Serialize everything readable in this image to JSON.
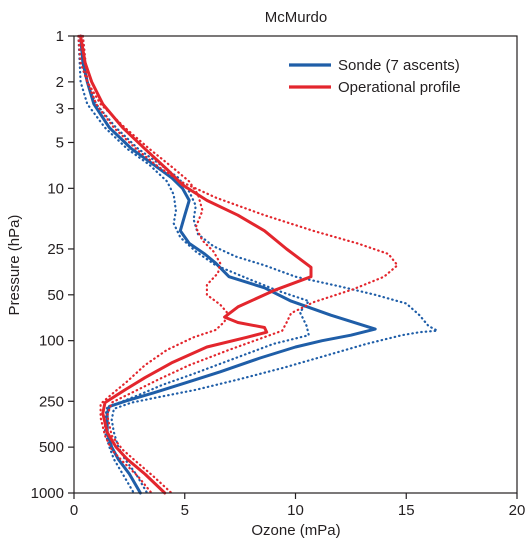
{
  "chart_data": {
    "type": "line",
    "title": "McMurdo",
    "xlabel": "Ozone (mPa)",
    "ylabel": "Pressure (hPa)",
    "xlim": [
      0,
      20
    ],
    "ylim": [
      1000,
      1
    ],
    "y_scale": "log",
    "x_ticks": [
      0,
      5,
      10,
      15,
      20
    ],
    "y_ticks": [
      1,
      2,
      3,
      5,
      10,
      25,
      50,
      100,
      250,
      500,
      1000
    ],
    "legend_position": "top-right",
    "colors": {
      "sonde": "#1f5ea8",
      "operational": "#e3262d",
      "axis": "#231f20"
    },
    "series": [
      {
        "name": "Sonde (7 ascents)",
        "style": "solid",
        "color": "#1f5ea8",
        "points": [
          [
            0.3,
            1
          ],
          [
            0.4,
            1.5
          ],
          [
            0.6,
            2
          ],
          [
            0.9,
            2.8
          ],
          [
            1.6,
            4
          ],
          [
            2.6,
            5.5
          ],
          [
            3.6,
            7
          ],
          [
            4.4,
            8.5
          ],
          [
            4.9,
            10
          ],
          [
            5.2,
            12
          ],
          [
            5.0,
            15
          ],
          [
            4.8,
            19
          ],
          [
            5.2,
            23
          ],
          [
            5.9,
            27
          ],
          [
            6.4,
            31
          ],
          [
            7.0,
            38
          ],
          [
            8.6,
            45
          ],
          [
            9.8,
            55
          ],
          [
            11.6,
            68
          ],
          [
            13.6,
            84
          ],
          [
            12.5,
            92
          ],
          [
            11.2,
            100
          ],
          [
            10.0,
            110
          ],
          [
            8.4,
            130
          ],
          [
            6.6,
            160
          ],
          [
            5.0,
            190
          ],
          [
            3.6,
            220
          ],
          [
            2.5,
            245
          ],
          [
            1.6,
            270
          ],
          [
            1.5,
            300
          ],
          [
            1.5,
            400
          ],
          [
            1.7,
            500
          ],
          [
            2.0,
            600
          ],
          [
            2.5,
            750
          ],
          [
            3.0,
            1000
          ]
        ]
      },
      {
        "name": "",
        "style": "dotted",
        "color": "#1f5ea8",
        "points": [
          [
            0.2,
            1
          ],
          [
            0.3,
            2
          ],
          [
            0.6,
            2.8
          ],
          [
            1.4,
            4
          ],
          [
            2.4,
            5.5
          ],
          [
            3.4,
            7
          ],
          [
            4.2,
            9
          ],
          [
            4.5,
            11
          ],
          [
            4.6,
            14
          ],
          [
            4.5,
            17
          ],
          [
            4.8,
            21
          ],
          [
            5.5,
            26
          ],
          [
            6.4,
            32
          ],
          [
            8.0,
            40
          ],
          [
            9.2,
            47
          ],
          [
            10.6,
            55
          ],
          [
            10.2,
            65
          ],
          [
            10.5,
            80
          ],
          [
            10.6,
            92
          ],
          [
            9.0,
            105
          ],
          [
            7.0,
            135
          ],
          [
            5.4,
            165
          ],
          [
            4.0,
            195
          ],
          [
            3.0,
            225
          ],
          [
            2.2,
            250
          ],
          [
            1.5,
            275
          ],
          [
            1.4,
            320
          ],
          [
            1.4,
            400
          ],
          [
            1.6,
            500
          ],
          [
            1.8,
            600
          ],
          [
            2.2,
            750
          ],
          [
            2.7,
            1000
          ]
        ]
      },
      {
        "name": "",
        "style": "dotted",
        "color": "#1f5ea8",
        "points": [
          [
            0.4,
            1
          ],
          [
            0.6,
            2
          ],
          [
            1.0,
            2.8
          ],
          [
            1.9,
            4
          ],
          [
            2.9,
            5.5
          ],
          [
            3.9,
            7
          ],
          [
            4.7,
            8.5
          ],
          [
            5.2,
            10.5
          ],
          [
            5.5,
            13
          ],
          [
            5.4,
            16
          ],
          [
            5.6,
            20
          ],
          [
            6.3,
            24
          ],
          [
            7.3,
            28
          ],
          [
            8.6,
            32
          ],
          [
            10.0,
            38
          ],
          [
            12.0,
            44
          ],
          [
            13.6,
            50
          ],
          [
            15.0,
            57
          ],
          [
            15.6,
            68
          ],
          [
            16.0,
            80
          ],
          [
            16.4,
            86
          ],
          [
            15.6,
            88
          ],
          [
            14.8,
            92
          ],
          [
            13.2,
            105
          ],
          [
            11.4,
            125
          ],
          [
            9.5,
            150
          ],
          [
            7.4,
            180
          ],
          [
            5.5,
            210
          ],
          [
            3.8,
            235
          ],
          [
            2.6,
            255
          ],
          [
            1.8,
            280
          ],
          [
            1.7,
            330
          ],
          [
            1.8,
            400
          ],
          [
            2.0,
            500
          ],
          [
            2.3,
            600
          ],
          [
            2.8,
            750
          ],
          [
            3.3,
            1000
          ]
        ]
      },
      {
        "name": "Operational profile",
        "style": "solid",
        "color": "#e3262d",
        "points": [
          [
            0.3,
            1
          ],
          [
            0.5,
            1.5
          ],
          [
            0.8,
            2
          ],
          [
            1.3,
            2.8
          ],
          [
            2.2,
            4
          ],
          [
            3.2,
            5.5
          ],
          [
            4.2,
            7.5
          ],
          [
            4.9,
            9.5
          ],
          [
            6.0,
            12
          ],
          [
            7.4,
            15
          ],
          [
            8.6,
            19
          ],
          [
            9.6,
            25
          ],
          [
            10.7,
            33
          ],
          [
            10.7,
            38
          ],
          [
            9.0,
            47
          ],
          [
            7.4,
            60
          ],
          [
            6.8,
            70
          ],
          [
            7.4,
            76
          ],
          [
            8.6,
            82
          ],
          [
            8.7,
            88
          ],
          [
            7.8,
            95
          ],
          [
            6.0,
            110
          ],
          [
            4.4,
            140
          ],
          [
            3.2,
            175
          ],
          [
            2.2,
            215
          ],
          [
            1.4,
            255
          ],
          [
            1.3,
            300
          ],
          [
            1.5,
            400
          ],
          [
            1.9,
            500
          ],
          [
            2.4,
            600
          ],
          [
            3.2,
            750
          ],
          [
            4.1,
            1000
          ]
        ]
      },
      {
        "name": "",
        "style": "dotted",
        "color": "#e3262d",
        "points": [
          [
            0.4,
            1
          ],
          [
            0.6,
            2
          ],
          [
            1.2,
            2.8
          ],
          [
            2.3,
            4
          ],
          [
            3.4,
            5.5
          ],
          [
            4.4,
            7.2
          ],
          [
            5.2,
            9
          ],
          [
            5.6,
            11
          ],
          [
            5.8,
            14
          ],
          [
            5.5,
            18
          ],
          [
            5.8,
            22
          ],
          [
            6.3,
            26
          ],
          [
            6.6,
            31
          ],
          [
            6.5,
            36
          ],
          [
            6.0,
            43
          ],
          [
            6.0,
            50
          ],
          [
            6.6,
            58
          ],
          [
            6.9,
            65
          ],
          [
            6.8,
            75
          ],
          [
            6.4,
            85
          ],
          [
            5.4,
            95
          ],
          [
            4.2,
            115
          ],
          [
            3.2,
            145
          ],
          [
            2.4,
            185
          ],
          [
            1.7,
            225
          ],
          [
            1.2,
            260
          ],
          [
            1.2,
            320
          ],
          [
            1.4,
            420
          ],
          [
            1.7,
            520
          ],
          [
            2.2,
            620
          ],
          [
            2.9,
            780
          ],
          [
            3.5,
            1000
          ]
        ]
      },
      {
        "name": "",
        "style": "dotted",
        "color": "#e3262d",
        "points": [
          [
            0.2,
            1
          ],
          [
            0.3,
            1.5
          ],
          [
            0.6,
            2
          ],
          [
            1.0,
            2.8
          ],
          [
            1.8,
            4
          ],
          [
            2.8,
            5.5
          ],
          [
            3.8,
            7.2
          ],
          [
            4.8,
            9
          ],
          [
            6.4,
            11.5
          ],
          [
            8.6,
            15
          ],
          [
            10.8,
            19
          ],
          [
            12.8,
            23
          ],
          [
            14.2,
            27
          ],
          [
            14.6,
            32
          ],
          [
            14.0,
            38
          ],
          [
            12.6,
            46
          ],
          [
            10.8,
            56
          ],
          [
            9.8,
            66
          ],
          [
            9.6,
            76
          ],
          [
            9.4,
            86
          ],
          [
            8.4,
            97
          ],
          [
            7.0,
            115
          ],
          [
            5.2,
            145
          ],
          [
            3.8,
            180
          ],
          [
            2.6,
            220
          ],
          [
            1.7,
            255
          ],
          [
            1.5,
            310
          ],
          [
            1.7,
            420
          ],
          [
            2.2,
            520
          ],
          [
            2.8,
            620
          ],
          [
            3.6,
            780
          ],
          [
            4.4,
            1000
          ]
        ]
      }
    ]
  }
}
